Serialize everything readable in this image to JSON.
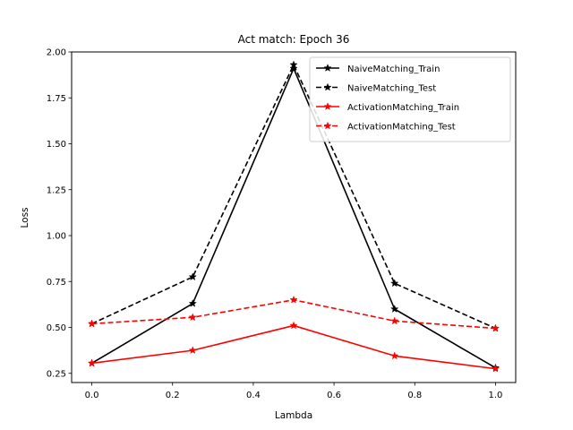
{
  "chart_data": {
    "type": "line",
    "title": "Act match: Epoch 36",
    "xlabel": "Lambda",
    "ylabel": "Loss",
    "x": [
      0.0,
      0.25,
      0.5,
      0.75,
      1.0
    ],
    "xlim": [
      -0.05,
      1.05
    ],
    "ylim": [
      0.2,
      2.0
    ],
    "xticks": [
      0.0,
      0.2,
      0.4,
      0.6,
      0.8,
      1.0
    ],
    "xtick_labels": [
      "0.0",
      "0.2",
      "0.4",
      "0.6",
      "0.8",
      "1.0"
    ],
    "yticks": [
      0.25,
      0.5,
      0.75,
      1.0,
      1.25,
      1.5,
      1.75,
      2.0
    ],
    "ytick_labels": [
      "0.25",
      "0.50",
      "0.75",
      "1.00",
      "1.25",
      "1.50",
      "1.75",
      "2.00"
    ],
    "grid": false,
    "legend_position": "top-right",
    "series": [
      {
        "name": "NaiveMatching_Train",
        "values": [
          0.305,
          0.63,
          1.91,
          0.6,
          0.28
        ],
        "color": "#000000",
        "dash": "solid",
        "marker": "star"
      },
      {
        "name": "NaiveMatching_Test",
        "values": [
          0.52,
          0.775,
          1.93,
          0.74,
          0.495
        ],
        "color": "#000000",
        "dash": "dashed",
        "marker": "star"
      },
      {
        "name": "ActivationMatching_Train",
        "values": [
          0.305,
          0.375,
          0.51,
          0.345,
          0.275
        ],
        "color": "#ff0000",
        "dash": "solid",
        "marker": "star"
      },
      {
        "name": "ActivationMatching_Test",
        "values": [
          0.52,
          0.555,
          0.65,
          0.535,
          0.495
        ],
        "color": "#ff0000",
        "dash": "dashed",
        "marker": "star"
      }
    ]
  }
}
